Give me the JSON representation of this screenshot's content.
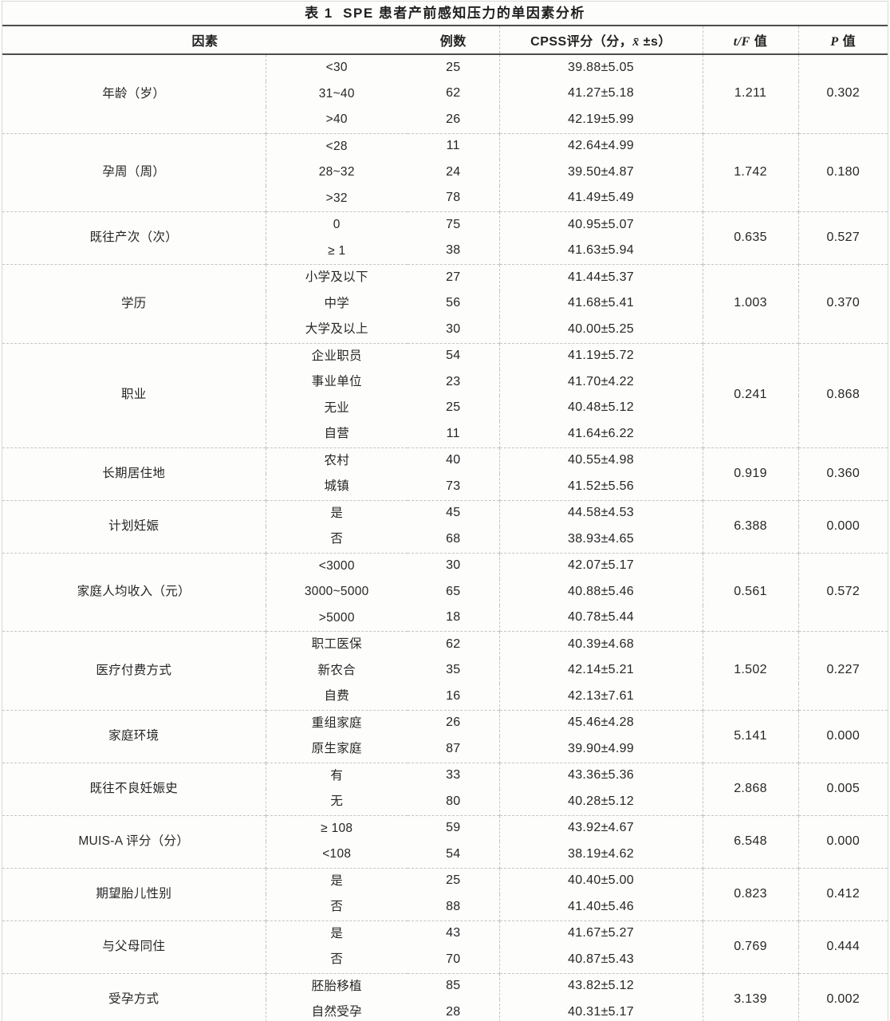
{
  "title": "表 1  SPE 患者产前感知压力的单因素分析",
  "header": {
    "factor": "因素",
    "n": "例数",
    "cpss_pre": "CPSS评分（分，",
    "cpss_var": "x̄",
    "cpss_post": " ±s）",
    "tf_var": "t/F",
    "tf_word": " 值",
    "p_var": "P",
    "p_word": " 值"
  },
  "colors": {
    "ink": "#262626",
    "rule_dark": "#4d4d4d",
    "rule_light_dashed": "#c4c4c2",
    "background": "#fdfdfc"
  },
  "table": {
    "groups": [
      {
        "factor": "年龄（岁）",
        "tf": "1.211",
        "p": "0.302",
        "rows": [
          {
            "category": "<30",
            "n": "25",
            "cpss": "39.88±5.05"
          },
          {
            "category": "31~40",
            "n": "62",
            "cpss": "41.27±5.18"
          },
          {
            "category": ">40",
            "n": "26",
            "cpss": "42.19±5.99"
          }
        ]
      },
      {
        "factor": "孕周（周）",
        "tf": "1.742",
        "p": "0.180",
        "rows": [
          {
            "category": "<28",
            "n": "11",
            "cpss": "42.64±4.99"
          },
          {
            "category": "28~32",
            "n": "24",
            "cpss": "39.50±4.87"
          },
          {
            "category": ">32",
            "n": "78",
            "cpss": "41.49±5.49"
          }
        ]
      },
      {
        "factor": "既往产次（次）",
        "tf": "0.635",
        "p": "0.527",
        "rows": [
          {
            "category": "0",
            "n": "75",
            "cpss": "40.95±5.07"
          },
          {
            "category": "≥ 1",
            "n": "38",
            "cpss": "41.63±5.94"
          }
        ]
      },
      {
        "factor": "学历",
        "tf": "1.003",
        "p": "0.370",
        "rows": [
          {
            "category": "小学及以下",
            "n": "27",
            "cpss": "41.44±5.37"
          },
          {
            "category": "中学",
            "n": "56",
            "cpss": "41.68±5.41"
          },
          {
            "category": "大学及以上",
            "n": "30",
            "cpss": "40.00±5.25"
          }
        ]
      },
      {
        "factor": "职业",
        "tf": "0.241",
        "p": "0.868",
        "rows": [
          {
            "category": "企业职员",
            "n": "54",
            "cpss": "41.19±5.72"
          },
          {
            "category": "事业单位",
            "n": "23",
            "cpss": "41.70±4.22"
          },
          {
            "category": "无业",
            "n": "25",
            "cpss": "40.48±5.12"
          },
          {
            "category": "自营",
            "n": "11",
            "cpss": "41.64±6.22"
          }
        ]
      },
      {
        "factor": "长期居住地",
        "tf": "0.919",
        "p": "0.360",
        "rows": [
          {
            "category": "农村",
            "n": "40",
            "cpss": "40.55±4.98"
          },
          {
            "category": "城镇",
            "n": "73",
            "cpss": "41.52±5.56"
          }
        ]
      },
      {
        "factor": "计划妊娠",
        "tf": "6.388",
        "p": "0.000",
        "rows": [
          {
            "category": "是",
            "n": "45",
            "cpss": "44.58±4.53"
          },
          {
            "category": "否",
            "n": "68",
            "cpss": "38.93±4.65"
          }
        ]
      },
      {
        "factor": "家庭人均收入（元）",
        "tf": "0.561",
        "p": "0.572",
        "rows": [
          {
            "category": "<3000",
            "n": "30",
            "cpss": "42.07±5.17"
          },
          {
            "category": "3000~5000",
            "n": "65",
            "cpss": "40.88±5.46"
          },
          {
            "category": ">5000",
            "n": "18",
            "cpss": "40.78±5.44"
          }
        ]
      },
      {
        "factor": "医疗付费方式",
        "tf": "1.502",
        "p": "0.227",
        "rows": [
          {
            "category": "职工医保",
            "n": "62",
            "cpss": "40.39±4.68"
          },
          {
            "category": "新农合",
            "n": "35",
            "cpss": "42.14±5.21"
          },
          {
            "category": "自费",
            "n": "16",
            "cpss": "42.13±7.61"
          }
        ]
      },
      {
        "factor": "家庭环境",
        "tf": "5.141",
        "p": "0.000",
        "rows": [
          {
            "category": "重组家庭",
            "n": "26",
            "cpss": "45.46±4.28"
          },
          {
            "category": "原生家庭",
            "n": "87",
            "cpss": "39.90±4.99"
          }
        ]
      },
      {
        "factor": "既往不良妊娠史",
        "tf": "2.868",
        "p": "0.005",
        "rows": [
          {
            "category": "有",
            "n": "33",
            "cpss": "43.36±5.36"
          },
          {
            "category": "无",
            "n": "80",
            "cpss": "40.28±5.12"
          }
        ]
      },
      {
        "factor": "MUIS-A 评分（分）",
        "tf": "6.548",
        "p": "0.000",
        "rows": [
          {
            "category": "≥ 108",
            "n": "59",
            "cpss": "43.92±4.67"
          },
          {
            "category": "<108",
            "n": "54",
            "cpss": "38.19±4.62"
          }
        ]
      },
      {
        "factor": "期望胎儿性别",
        "tf": "0.823",
        "p": "0.412",
        "rows": [
          {
            "category": "是",
            "n": "25",
            "cpss": "40.40±5.00"
          },
          {
            "category": "否",
            "n": "88",
            "cpss": "41.40±5.46"
          }
        ]
      },
      {
        "factor": "与父母同住",
        "tf": "0.769",
        "p": "0.444",
        "rows": [
          {
            "category": "是",
            "n": "43",
            "cpss": "41.67±5.27"
          },
          {
            "category": "否",
            "n": "70",
            "cpss": "40.87±5.43"
          }
        ]
      },
      {
        "factor": "受孕方式",
        "tf": "3.139",
        "p": "0.002",
        "rows": [
          {
            "category": "胚胎移植",
            "n": "85",
            "cpss": "43.82±5.12"
          },
          {
            "category": "自然受孕",
            "n": "28",
            "cpss": "40.31±5.17"
          }
        ]
      }
    ]
  }
}
